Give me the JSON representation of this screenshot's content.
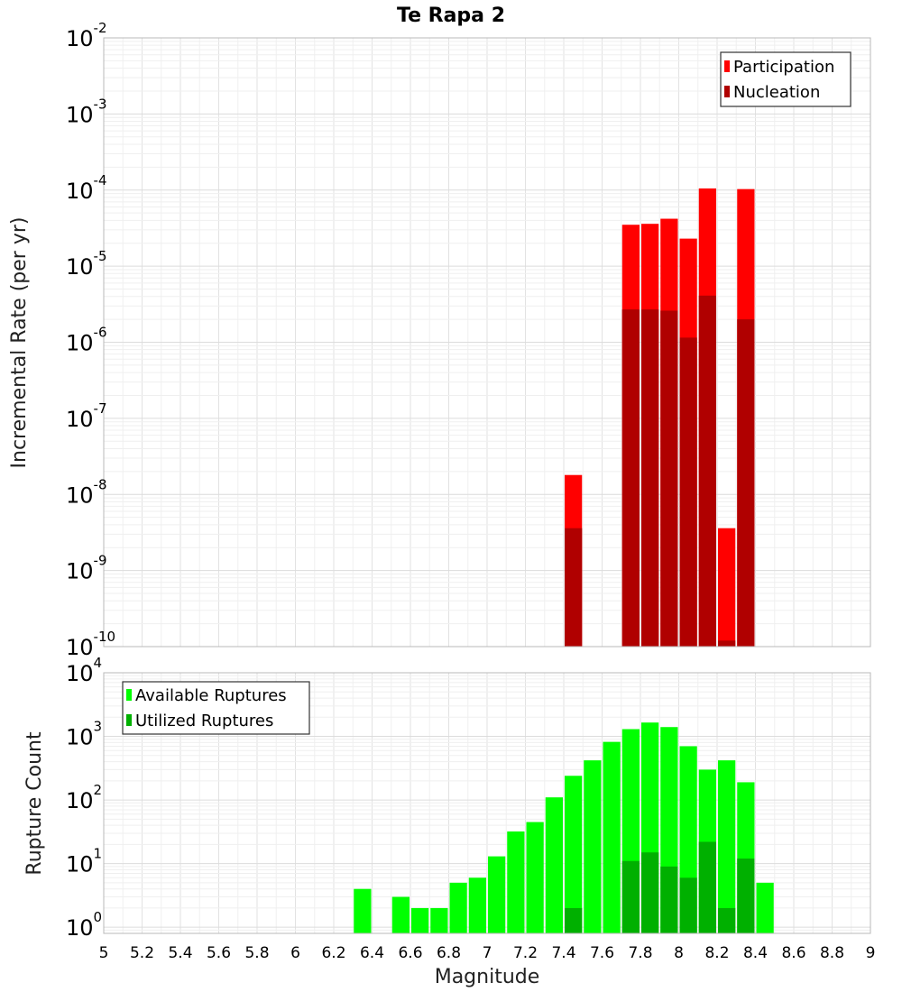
{
  "chart_data": [
    {
      "type": "bar",
      "title": "Te Rapa 2",
      "xlabel": "",
      "ylabel": "Incremental Rate (per yr)",
      "xlim": [
        5,
        9
      ],
      "ylim": [
        1e-10,
        0.01
      ],
      "yscale": "log",
      "grid": true,
      "legend": "top-right",
      "bin_width": 0.1,
      "series": [
        {
          "name": "Participation",
          "color": "#ff0000",
          "x": [
            7.45,
            7.75,
            7.85,
            7.95,
            8.05,
            8.15,
            8.25,
            8.35
          ],
          "values": [
            1.8e-08,
            3.5e-05,
            3.6e-05,
            4.2e-05,
            2.3e-05,
            0.000105,
            3.6e-09,
            0.000103
          ]
        },
        {
          "name": "Nucleation",
          "color": "#b00000",
          "x": [
            7.45,
            7.75,
            7.85,
            7.95,
            8.05,
            8.15,
            8.25,
            8.35
          ],
          "values": [
            3.6e-09,
            2.7e-06,
            2.7e-06,
            2.6e-06,
            1.15e-06,
            4.1e-06,
            1.2e-10,
            2e-06
          ]
        }
      ]
    },
    {
      "type": "bar",
      "title": "",
      "xlabel": "Magnitude",
      "ylabel": "Rupture Count",
      "xlim": [
        5,
        9
      ],
      "ylim": [
        0.8,
        10000
      ],
      "yscale": "log",
      "grid": true,
      "legend": "top-left",
      "bin_width": 0.1,
      "x_ticks": [
        "5",
        "5.2",
        "5.4",
        "5.6",
        "5.8",
        "6",
        "6.2",
        "6.4",
        "6.6",
        "6.8",
        "7",
        "7.2",
        "7.4",
        "7.6",
        "7.8",
        "8",
        "8.2",
        "8.4",
        "8.6",
        "8.8",
        "9"
      ],
      "series": [
        {
          "name": "Available Ruptures",
          "color": "#00ff00",
          "x": [
            6.35,
            6.55,
            6.65,
            6.75,
            6.85,
            6.95,
            7.05,
            7.15,
            7.25,
            7.35,
            7.45,
            7.55,
            7.65,
            7.75,
            7.85,
            7.95,
            8.05,
            8.15,
            8.25,
            8.35,
            8.45
          ],
          "values": [
            4,
            3,
            2,
            2,
            5,
            6,
            13,
            32,
            45,
            110,
            240,
            420,
            820,
            1300,
            1650,
            1400,
            700,
            300,
            420,
            190,
            5
          ]
        },
        {
          "name": "Utilized Ruptures",
          "color": "#00b000",
          "x": [
            7.45,
            7.75,
            7.85,
            7.95,
            8.05,
            8.15,
            8.25,
            8.35
          ],
          "values": [
            2,
            11,
            15,
            9,
            6,
            22,
            2,
            12
          ]
        }
      ]
    }
  ]
}
